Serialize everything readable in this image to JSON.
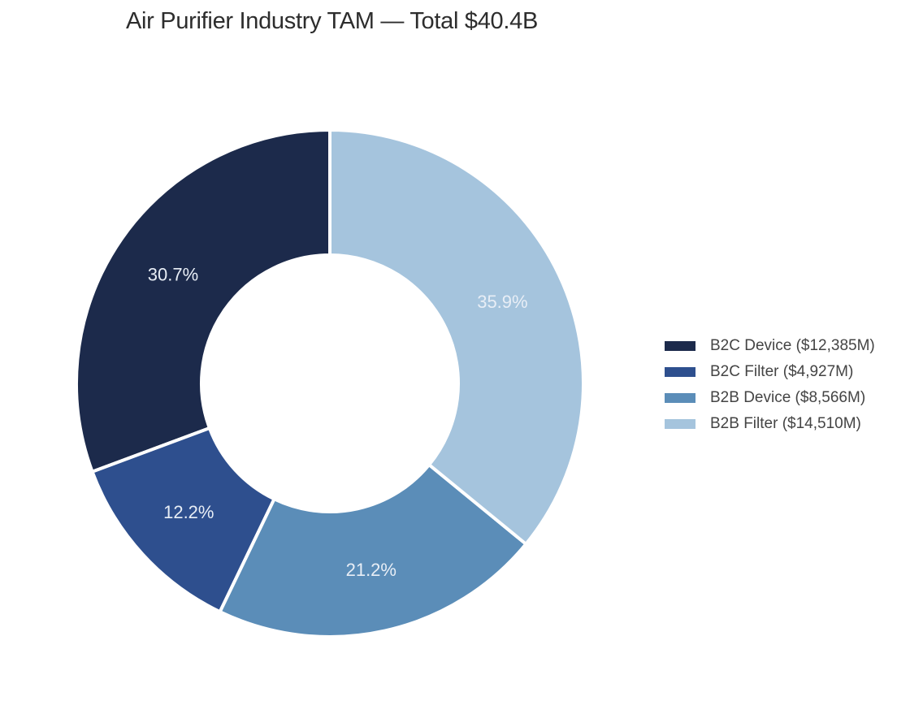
{
  "chart_data": {
    "type": "pie",
    "variant": "donut",
    "title": "Air Purifier Industry TAM — Total $40.4B",
    "unit": "$M",
    "total_billion": 40.4,
    "slices": [
      {
        "name": "B2C Device",
        "value": 12385,
        "percent_label": "30.7%",
        "legend_label": "B2C Device ($12,385M)",
        "color": "#1c2a4b"
      },
      {
        "name": "B2C Filter",
        "value": 4927,
        "percent_label": "12.2%",
        "legend_label": "B2C Filter ($4,927M)",
        "color": "#2e4f8e"
      },
      {
        "name": "B2B Device",
        "value": 8566,
        "percent_label": "21.2%",
        "legend_label": "B2B Device ($8,566M)",
        "color": "#5b8db8"
      },
      {
        "name": "B2B Filter",
        "value": 14510,
        "percent_label": "35.9%",
        "legend_label": "B2B Filter ($14,510M)",
        "color": "#a5c4dd"
      }
    ],
    "direction": "counterclockwise",
    "start_angle": "top",
    "legend_position": "right"
  }
}
